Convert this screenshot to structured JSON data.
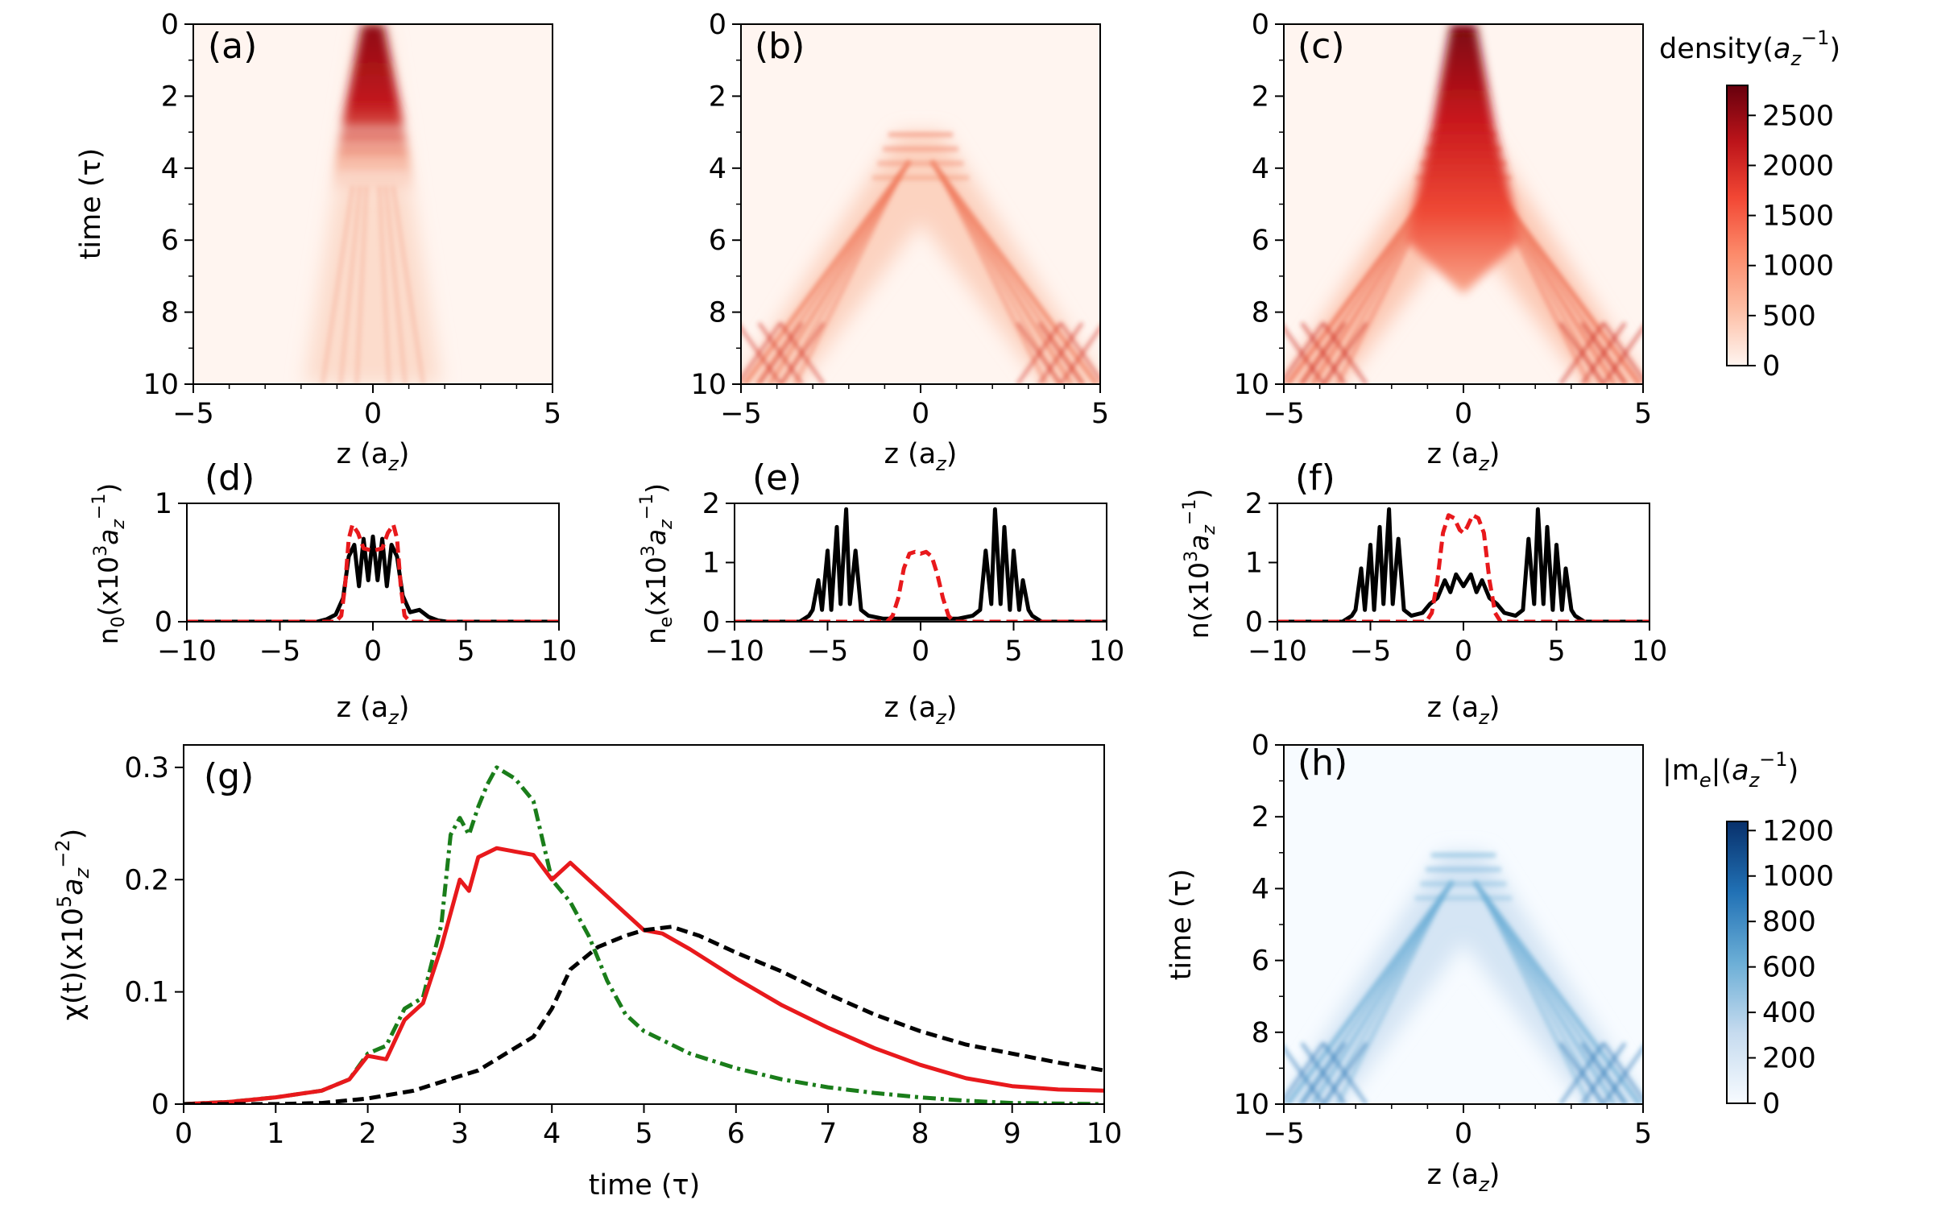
{
  "colorbars": {
    "density": {
      "label": "density(a_z^-1)",
      "label_main": "density(",
      "label_a": "a",
      "label_sub": "z",
      "label_sup": "−1",
      "label_close": ")",
      "ticks": [
        0,
        500,
        1000,
        1500,
        2000,
        2500
      ],
      "max": 2800,
      "colormap": "Reds",
      "colors": [
        "#fff5f0",
        "#fdbea5",
        "#fc8a6a",
        "#f24734",
        "#bc141a",
        "#67000d"
      ]
    },
    "me": {
      "label": "|m_e|(a_z^-1)",
      "label_main": "|m",
      "label_sub1": "e",
      "label_mid": "|(",
      "label_a": "a",
      "label_sub": "z",
      "label_sup": "−1",
      "label_close": ")",
      "ticks": [
        0,
        200,
        400,
        600,
        800,
        1000,
        1200
      ],
      "max": 1240,
      "colormap": "Blues",
      "colors": [
        "#f7fbff",
        "#c6dbef",
        "#6baed6",
        "#2171b5",
        "#08306b"
      ]
    }
  },
  "panels": {
    "a": {
      "tag": "(a)",
      "type": "heatmap",
      "quantity": "density",
      "ylabel": "time (τ)",
      "xlabel": "z (a_z)",
      "xlim": [
        -5,
        5
      ],
      "ylim": [
        10,
        0
      ],
      "xticks": [
        -5,
        0,
        5
      ],
      "yticks": [
        0,
        2,
        4,
        6,
        8,
        10
      ]
    },
    "b": {
      "tag": "(b)",
      "type": "heatmap",
      "quantity": "density",
      "xlabel": "z (a_z)",
      "xlim": [
        -5,
        5
      ],
      "ylim": [
        10,
        0
      ],
      "xticks": [
        -5,
        0,
        5
      ],
      "yticks": [
        0,
        2,
        4,
        6,
        8,
        10
      ]
    },
    "c": {
      "tag": "(c)",
      "type": "heatmap",
      "quantity": "density",
      "xlabel": "z (a_z)",
      "xlim": [
        -5,
        5
      ],
      "ylim": [
        10,
        0
      ],
      "xticks": [
        -5,
        0,
        5
      ],
      "yticks": [
        0,
        2,
        4,
        6,
        8,
        10
      ]
    },
    "d": {
      "tag": "(d)",
      "type": "line",
      "ylabel": "n_0(x10^3 a_z^-1)",
      "ylabel_main": "n",
      "ylabel_sub": "0",
      "xlabel": "z (a_z)",
      "xlim": [
        -10,
        10
      ],
      "ylim": [
        0,
        1
      ],
      "xticks": [
        -10,
        -5,
        0,
        5,
        10
      ],
      "yticks": [
        0,
        1
      ]
    },
    "e": {
      "tag": "(e)",
      "type": "line",
      "ylabel": "n_e(x10^3 a_z^-1)",
      "ylabel_main": "n",
      "ylabel_sub": "e",
      "xlabel": "z (a_z)",
      "xlim": [
        -10,
        10
      ],
      "ylim": [
        0,
        2
      ],
      "xticks": [
        -10,
        -5,
        0,
        5,
        10
      ],
      "yticks": [
        0,
        1,
        2
      ]
    },
    "f": {
      "tag": "(f)",
      "type": "line",
      "ylabel": "n(x10^3 a_z^-1)",
      "ylabel_main": "n",
      "ylabel_sub": "",
      "xlabel": "z (a_z)",
      "xlim": [
        -10,
        10
      ],
      "ylim": [
        0,
        2
      ],
      "xticks": [
        -10,
        -5,
        0,
        5,
        10
      ],
      "yticks": [
        0,
        1,
        2
      ]
    },
    "g": {
      "tag": "(g)",
      "type": "line",
      "ylabel": "χ(t)(x10^5 a_z^-2)",
      "xlabel": "time (τ)",
      "xlim": [
        0,
        10
      ],
      "ylim": [
        0,
        0.32
      ],
      "xticks": [
        0,
        1,
        2,
        3,
        4,
        5,
        6,
        7,
        8,
        9,
        10
      ],
      "yticks": [
        0.0,
        0.1,
        0.2,
        0.3
      ]
    },
    "h": {
      "tag": "(h)",
      "type": "heatmap",
      "quantity": "me",
      "ylabel": "time (τ)",
      "xlabel": "z (a_z)",
      "xlim": [
        -5,
        5
      ],
      "ylim": [
        10,
        0
      ],
      "xticks": [
        -5,
        0,
        5
      ],
      "yticks": [
        0,
        2,
        4,
        6,
        8,
        10
      ]
    }
  },
  "labels": {
    "z_main": "z (a",
    "z_sub": "z",
    "z_close": ")",
    "time": "time (τ)",
    "x10": "(x10",
    "three": "3",
    "five": "5",
    "a": "a",
    "zsub": "z",
    "minus1": "−1",
    "minus2": "−2",
    "close": ")",
    "chi": "χ(t)"
  },
  "chart_data": [
    {
      "panel": "d",
      "type": "line",
      "series": [
        {
          "name": "solid",
          "color": "#000000",
          "style": "solid",
          "x": [
            -10,
            -3,
            -2.5,
            -2,
            -1.6,
            -1.3,
            -1.0,
            -0.75,
            -0.5,
            -0.25,
            0,
            0.25,
            0.5,
            0.75,
            1.0,
            1.3,
            1.6,
            2,
            2.5,
            3,
            3.5,
            4,
            10
          ],
          "y": [
            0,
            0,
            0.02,
            0.06,
            0.2,
            0.55,
            0.65,
            0.3,
            0.7,
            0.35,
            0.72,
            0.35,
            0.7,
            0.3,
            0.65,
            0.55,
            0.22,
            0.08,
            0.1,
            0.04,
            0.01,
            0,
            0
          ]
        },
        {
          "name": "dashed",
          "color": "#e8191c",
          "style": "dashed",
          "x": [
            -10,
            -2,
            -1.7,
            -1.5,
            -1.3,
            -1.1,
            -0.8,
            -0.5,
            0,
            0.5,
            0.8,
            1.1,
            1.3,
            1.5,
            1.7,
            2,
            10
          ],
          "y": [
            0,
            0,
            0.05,
            0.3,
            0.7,
            0.82,
            0.75,
            0.62,
            0.6,
            0.62,
            0.75,
            0.82,
            0.7,
            0.3,
            0.05,
            0,
            0
          ]
        }
      ]
    },
    {
      "panel": "e",
      "type": "line",
      "series": [
        {
          "name": "solid",
          "color": "#000000",
          "style": "solid",
          "x": [
            -10,
            -6.5,
            -6,
            -5.8,
            -5.5,
            -5.3,
            -5.0,
            -4.8,
            -4.5,
            -4.3,
            -4.0,
            -3.8,
            -3.5,
            -3.2,
            -2.8,
            -2,
            0,
            2,
            2.8,
            3.2,
            3.5,
            3.8,
            4.0,
            4.3,
            4.5,
            4.8,
            5.0,
            5.3,
            5.5,
            5.8,
            6,
            6.5,
            10
          ],
          "y": [
            0,
            0,
            0.1,
            0.2,
            0.7,
            0.2,
            1.2,
            0.2,
            1.6,
            0.3,
            1.9,
            0.3,
            1.2,
            0.2,
            0.1,
            0.05,
            0.05,
            0.05,
            0.1,
            0.2,
            1.2,
            0.3,
            1.9,
            0.3,
            1.6,
            0.2,
            1.2,
            0.2,
            0.7,
            0.2,
            0.1,
            0,
            0
          ]
        },
        {
          "name": "dashed",
          "color": "#e8191c",
          "style": "dashed",
          "x": [
            -10,
            -1.8,
            -1.5,
            -1.2,
            -0.9,
            -0.6,
            -0.3,
            0,
            0.3,
            0.6,
            0.9,
            1.2,
            1.5,
            1.8,
            10
          ],
          "y": [
            0,
            0,
            0.1,
            0.4,
            0.9,
            1.15,
            1.18,
            1.15,
            1.18,
            1.1,
            0.8,
            0.4,
            0.1,
            0,
            0
          ]
        }
      ]
    },
    {
      "panel": "f",
      "type": "line",
      "series": [
        {
          "name": "solid",
          "color": "#000000",
          "style": "solid",
          "x": [
            -10,
            -6.5,
            -6,
            -5.8,
            -5.5,
            -5.3,
            -5.0,
            -4.8,
            -4.5,
            -4.3,
            -4.0,
            -3.8,
            -3.5,
            -3.2,
            -2.8,
            -2.2,
            -1.8,
            -1.4,
            -1.0,
            -0.7,
            -0.4,
            0,
            0.4,
            0.7,
            1.0,
            1.4,
            1.8,
            2.2,
            2.8,
            3.2,
            3.5,
            3.8,
            4.0,
            4.3,
            4.5,
            4.8,
            5.0,
            5.3,
            5.5,
            5.8,
            6,
            6.5,
            10
          ],
          "y": [
            0,
            0,
            0.1,
            0.2,
            0.9,
            0.2,
            1.3,
            0.2,
            1.6,
            0.3,
            1.9,
            0.3,
            1.4,
            0.2,
            0.1,
            0.15,
            0.3,
            0.4,
            0.7,
            0.5,
            0.8,
            0.6,
            0.8,
            0.5,
            0.7,
            0.4,
            0.3,
            0.15,
            0.1,
            0.2,
            1.4,
            0.3,
            1.9,
            0.3,
            1.6,
            0.2,
            1.3,
            0.2,
            0.9,
            0.2,
            0.1,
            0,
            0
          ]
        },
        {
          "name": "dashed",
          "color": "#e8191c",
          "style": "dashed",
          "x": [
            -10,
            -2,
            -1.7,
            -1.4,
            -1.1,
            -0.8,
            -0.5,
            -0.2,
            0,
            0.2,
            0.5,
            0.8,
            1.1,
            1.4,
            1.7,
            2,
            10
          ],
          "y": [
            0,
            0,
            0.15,
            0.7,
            1.5,
            1.8,
            1.75,
            1.55,
            1.5,
            1.6,
            1.8,
            1.75,
            1.5,
            0.7,
            0.15,
            0,
            0
          ]
        }
      ]
    },
    {
      "panel": "g",
      "type": "line",
      "series": [
        {
          "name": "green dash-dot",
          "color": "#1a7d1a",
          "style": "dashdot",
          "x": [
            0,
            0.5,
            1,
            1.5,
            1.8,
            2,
            2.2,
            2.4,
            2.6,
            2.8,
            2.9,
            3.0,
            3.1,
            3.2,
            3.3,
            3.4,
            3.6,
            3.8,
            4.0,
            4.2,
            4.4,
            4.6,
            4.8,
            5,
            5.5,
            6,
            6.5,
            7,
            7.5,
            8,
            8.5,
            9,
            10
          ],
          "y": [
            0,
            0.002,
            0.006,
            0.012,
            0.022,
            0.045,
            0.052,
            0.085,
            0.095,
            0.16,
            0.24,
            0.255,
            0.24,
            0.265,
            0.285,
            0.3,
            0.29,
            0.27,
            0.2,
            0.18,
            0.15,
            0.11,
            0.08,
            0.065,
            0.045,
            0.032,
            0.022,
            0.015,
            0.01,
            0.006,
            0.003,
            0.001,
            0
          ]
        },
        {
          "name": "red solid",
          "color": "#e8191c",
          "style": "solid",
          "x": [
            0,
            0.5,
            1,
            1.5,
            1.8,
            2,
            2.2,
            2.4,
            2.6,
            2.8,
            3.0,
            3.1,
            3.2,
            3.4,
            3.6,
            3.8,
            4.0,
            4.2,
            4.4,
            4.6,
            4.8,
            5,
            5.2,
            5.5,
            6,
            6.5,
            7,
            7.5,
            8,
            8.5,
            9,
            9.5,
            10
          ],
          "y": [
            0,
            0.002,
            0.006,
            0.012,
            0.022,
            0.043,
            0.04,
            0.075,
            0.09,
            0.14,
            0.2,
            0.19,
            0.22,
            0.228,
            0.225,
            0.222,
            0.2,
            0.215,
            0.2,
            0.185,
            0.17,
            0.155,
            0.152,
            0.138,
            0.112,
            0.088,
            0.068,
            0.05,
            0.035,
            0.023,
            0.016,
            0.013,
            0.012
          ]
        },
        {
          "name": "black dashed",
          "color": "#000000",
          "style": "dashed",
          "x": [
            0,
            1,
            1.5,
            2,
            2.5,
            3,
            3.2,
            3.5,
            3.8,
            4,
            4.2,
            4.5,
            4.8,
            5,
            5.3,
            5.6,
            6,
            6.5,
            7,
            7.5,
            8,
            8.5,
            9,
            9.5,
            10
          ],
          "y": [
            0,
            0,
            0.001,
            0.005,
            0.012,
            0.025,
            0.03,
            0.045,
            0.06,
            0.085,
            0.12,
            0.14,
            0.15,
            0.155,
            0.158,
            0.15,
            0.135,
            0.118,
            0.098,
            0.08,
            0.065,
            0.053,
            0.045,
            0.037,
            0.03
          ]
        }
      ]
    }
  ]
}
